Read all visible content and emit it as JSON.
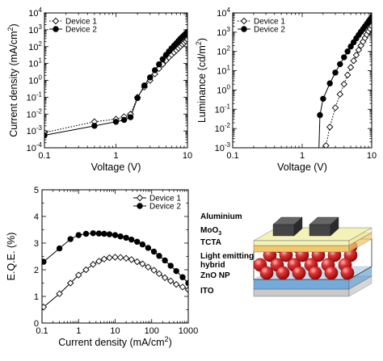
{
  "chart_data": [
    {
      "type": "line",
      "xscale": "log",
      "yscale": "log",
      "xlim": [
        0.1,
        10
      ],
      "ylim": [
        0.0001,
        10000
      ],
      "xlabel": "Voltage (V)",
      "ylabel": "Current density (mA/cm",
      "ylabel_sup": "2",
      "ylabel_end": ")",
      "x_ticklabels": [
        {
          "v": 0.1,
          "t": "0.1"
        },
        {
          "v": 1,
          "t": "1"
        },
        {
          "v": 10,
          "t": "10"
        }
      ],
      "y_ticklabels": [
        {
          "e": -4
        },
        {
          "e": -3
        },
        {
          "e": -2
        },
        {
          "e": -1
        },
        {
          "e": 0
        },
        {
          "e": 1
        },
        {
          "e": 2
        },
        {
          "e": 3
        },
        {
          "e": 4
        }
      ],
      "legend": "top-left",
      "series": [
        {
          "name": "Device 1",
          "marker": "diamond-open",
          "line": "dotted",
          "x": [
            0.1,
            0.5,
            1.0,
            1.3,
            1.6,
            2.0,
            2.5,
            3.0,
            3.5,
            4.0,
            4.5,
            5.0,
            5.5,
            6.0,
            6.5,
            7.0,
            7.5,
            8.0,
            8.5,
            9.0,
            9.5,
            10.0
          ],
          "y": [
            0.0008,
            0.0035,
            0.005,
            0.007,
            0.01,
            0.1,
            0.4,
            1.0,
            2.4,
            5.0,
            9.0,
            15,
            23,
            33,
            45,
            60,
            80,
            105,
            135,
            170,
            210,
            260
          ]
        },
        {
          "name": "Device 2",
          "marker": "circle-filled",
          "line": "solid",
          "x": [
            0.1,
            0.5,
            1.0,
            1.3,
            1.6,
            2.0,
            2.5,
            3.0,
            3.5,
            4.0,
            4.5,
            5.0,
            5.5,
            6.0,
            6.5,
            7.0,
            7.5,
            8.0,
            8.5,
            9.0,
            9.5,
            10.0
          ],
          "y": [
            0.00055,
            0.002,
            0.0035,
            0.0045,
            0.0065,
            0.09,
            0.5,
            1.5,
            4.0,
            9.0,
            18,
            32,
            52,
            80,
            115,
            160,
            220,
            300,
            380,
            480,
            600,
            750
          ]
        }
      ]
    },
    {
      "type": "line",
      "xscale": "log",
      "yscale": "log",
      "xlim": [
        0.1,
        10
      ],
      "ylim": [
        0.001,
        10000
      ],
      "xlabel": "Voltage (V)",
      "ylabel": "Luminance (cd/m",
      "ylabel_sup": "2",
      "ylabel_end": ")",
      "x_ticklabels": [
        {
          "v": 0.1,
          "t": "0.1"
        },
        {
          "v": 1,
          "t": "1"
        },
        {
          "v": 10,
          "t": "10"
        }
      ],
      "y_ticklabels": [
        {
          "e": -3
        },
        {
          "e": -2
        },
        {
          "e": -1
        },
        {
          "e": 0
        },
        {
          "e": 1
        },
        {
          "e": 2
        },
        {
          "e": 3
        },
        {
          "e": 4
        }
      ],
      "legend": "top-left",
      "series": [
        {
          "name": "Device 1",
          "marker": "diamond-open",
          "line": "dotted",
          "x": [
            2.2,
            2.5,
            3.0,
            3.5,
            4.0,
            4.5,
            5.0,
            5.5,
            6.0,
            6.5,
            7.0,
            7.5,
            8.0,
            8.5,
            9.0,
            9.5,
            10.0
          ],
          "y": [
            0.0013,
            0.012,
            0.12,
            0.6,
            2.0,
            6.0,
            15,
            33,
            65,
            120,
            200,
            320,
            500,
            750,
            1100,
            1500,
            2100
          ]
        },
        {
          "name": "Device 2",
          "marker": "circle-filled",
          "line": "solid",
          "x": [
            1.8,
            2.0,
            2.5,
            3.0,
            3.5,
            4.0,
            4.5,
            5.0,
            5.5,
            6.0,
            6.5,
            7.0,
            7.5,
            8.0,
            8.5,
            9.0,
            9.5,
            10.0
          ],
          "y": [
            0.05,
            0.35,
            2.2,
            8.0,
            22,
            50,
            100,
            180,
            300,
            480,
            720,
            1050,
            1450,
            2000,
            2700,
            3600,
            4700,
            6000
          ]
        }
      ]
    },
    {
      "type": "line",
      "xscale": "log",
      "yscale": "linear",
      "xlim": [
        0.1,
        1000
      ],
      "ylim": [
        0,
        5
      ],
      "xlabel": "Current density (mA/cm",
      "xlabel_sup": "2",
      "xlabel_end": ")",
      "ylabel": "E.Q.E.  (%)",
      "x_ticklabels": [
        {
          "v": 0.1,
          "t": "0.1"
        },
        {
          "v": 1,
          "t": "1"
        },
        {
          "v": 10,
          "t": "10"
        },
        {
          "v": 100,
          "t": "100"
        },
        {
          "v": 1000,
          "t": "1000"
        }
      ],
      "y_ticks": [
        0,
        1,
        2,
        3,
        4,
        5
      ],
      "y_ticklabels_text": [
        "0",
        "1",
        "2",
        "3",
        "4",
        "5"
      ],
      "legend": "top-right",
      "series": [
        {
          "name": "Device 1",
          "marker": "diamond-open",
          "line": "solid",
          "x": [
            0.11,
            0.3,
            0.6,
            1.0,
            1.6,
            2.5,
            3.6,
            5,
            7,
            10,
            14,
            20,
            28,
            40,
            56,
            80,
            115,
            160,
            230,
            330,
            470,
            700,
            1000
          ],
          "y": [
            0.6,
            1.1,
            1.5,
            1.8,
            2.0,
            2.2,
            2.32,
            2.4,
            2.45,
            2.47,
            2.46,
            2.43,
            2.38,
            2.3,
            2.22,
            2.1,
            1.98,
            1.85,
            1.7,
            1.58,
            1.45,
            1.35,
            1.25
          ]
        },
        {
          "name": "Device 2",
          "marker": "circle-filled",
          "line": "solid",
          "x": [
            0.11,
            0.3,
            0.6,
            1.0,
            1.6,
            2.5,
            3.6,
            5,
            7,
            10,
            14,
            20,
            28,
            40,
            56,
            80,
            115,
            160,
            230,
            330,
            470,
            700,
            1000
          ],
          "y": [
            2.3,
            2.8,
            3.15,
            3.3,
            3.35,
            3.37,
            3.36,
            3.35,
            3.33,
            3.3,
            3.25,
            3.2,
            3.13,
            3.05,
            2.95,
            2.82,
            2.68,
            2.52,
            2.35,
            2.15,
            1.95,
            1.72,
            1.5
          ]
        }
      ]
    }
  ],
  "device_stack": {
    "layers": [
      {
        "label": "Aluminium"
      },
      {
        "label": "MoO",
        "sub": "3"
      },
      {
        "label": "TCTA"
      },
      {
        "label": "Light emitting",
        "label2": "hybrid"
      },
      {
        "label": "ZnO NP"
      },
      {
        "label": "ITO"
      }
    ],
    "colors": {
      "aluminium": "#444444",
      "moo3": "#f3f3b8",
      "tcta": "#f2c86a",
      "hybrid_sphere": "#d42a2a",
      "zno": "#74a9d8",
      "ito": "#c9c9c9"
    }
  }
}
